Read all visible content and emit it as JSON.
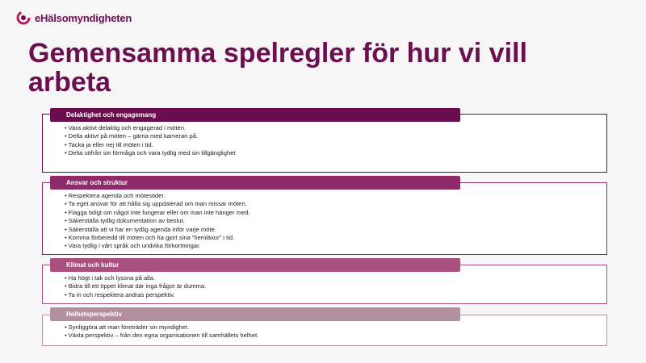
{
  "header": {
    "logo": "eHälsomyndigheten",
    "title": "Gemensamma spelregler för hur vi vill arbeta"
  },
  "sections": [
    {
      "heading": "Delaktighet och engagemang",
      "items": [
        "Vara aktivt delaktig och engagerad i möten.",
        "Delta aktivt på möten – gärna med kameran på.",
        "Tacka ja eller nej till möten i tid.",
        "Delta utifrån sin förmåga och vara tydlig med sin tillgänglighet"
      ]
    },
    {
      "heading": "Ansvar och struktur",
      "items": [
        "Respektera agenda och mötestider.",
        "Ta eget ansvar för att hålla sig uppdaterad om man missar möten.",
        "Flagga tidigt om något inte fungerar eller om man inte hänger med.",
        "Säkerställa tydlig dokumentation av beslut.",
        "Säkerställa att vi har en tydlig agenda inför varje möte.",
        "Komma förberedd till möten och ha gjort sina “hemläxor” i tid.",
        "Vara tydlig i vårt språk och undvika förkortningar."
      ]
    },
    {
      "heading": "Klimat och kultur",
      "items": [
        "Ha högt i tak och lyssna på alla.",
        "Bidra till ett öppet klimat där inga frågor är dumma.",
        "Ta in och respektera andras perspektiv."
      ]
    },
    {
      "heading": "Helhetsperspektiv",
      "items": [
        "Synliggöra att man företräder sin myndighet.",
        "Växla perspektiv – från den egna organisationen till samhällets helhet."
      ]
    }
  ]
}
